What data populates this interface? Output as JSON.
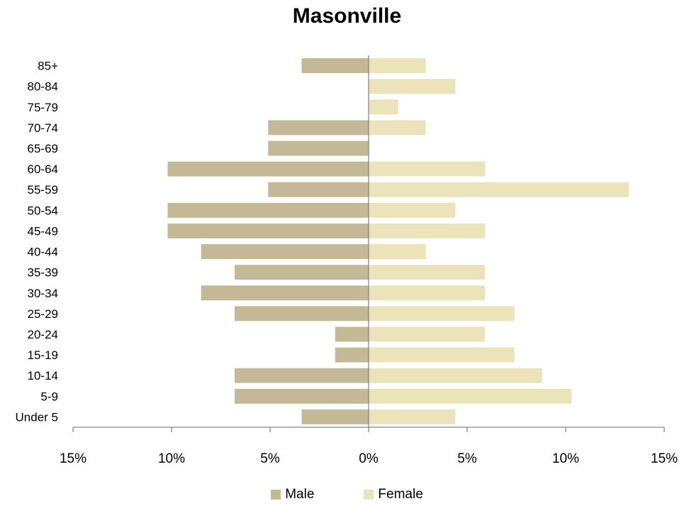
{
  "chart_data": {
    "type": "bar",
    "orientation": "horizontal",
    "layout": "population-pyramid",
    "title": "Masonville",
    "categories": [
      "Under 5",
      "5-9",
      "10-14",
      "15-19",
      "20-24",
      "25-29",
      "30-34",
      "35-39",
      "40-44",
      "45-49",
      "50-54",
      "55-59",
      "60-64",
      "65-69",
      "70-74",
      "75-79",
      "80-84",
      "85+"
    ],
    "series": [
      {
        "name": "Male",
        "color": "#c4b996",
        "values": [
          3.4,
          6.8,
          6.8,
          1.7,
          1.7,
          6.8,
          8.5,
          6.8,
          8.5,
          10.2,
          10.2,
          5.1,
          10.2,
          5.1,
          5.1,
          0,
          0,
          3.4
        ]
      },
      {
        "name": "Female",
        "color": "#ebe4bb",
        "values": [
          4.4,
          10.3,
          8.8,
          7.4,
          5.9,
          7.4,
          5.9,
          5.9,
          2.9,
          5.9,
          4.4,
          13.2,
          5.9,
          0,
          2.9,
          1.5,
          4.4,
          2.9
        ]
      }
    ],
    "xlim": [
      -15,
      15
    ],
    "xticks": [
      -15,
      -10,
      -5,
      0,
      5,
      10,
      15
    ],
    "xtick_labels": [
      "15%",
      "10%",
      "5%",
      "0%",
      "5%",
      "10%",
      "15%"
    ],
    "grid": false,
    "legend_position": "bottom"
  }
}
